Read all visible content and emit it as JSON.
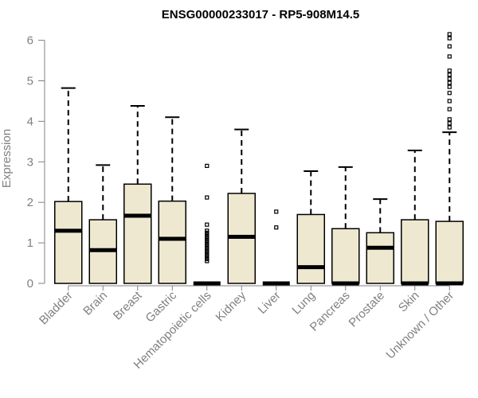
{
  "chart_data": {
    "type": "boxplot",
    "title": "ENSG00000233017 - RP5-908M14.5",
    "ylabel": "Expression",
    "xlabel": "",
    "ylim": [
      0,
      6.3
    ],
    "yticks": [
      0,
      1,
      2,
      3,
      4,
      5,
      6
    ],
    "grid": false,
    "colors": {
      "box_fill": "#EEE8D0",
      "box_stroke": "#000000",
      "axis": "#808080",
      "median": "#000000"
    },
    "categories": [
      "Bladder",
      "Brain",
      "Breast",
      "Gastric",
      "Hematopoietic cells",
      "Kidney",
      "Liver",
      "Lung",
      "Pancreas",
      "Prostate",
      "Skin",
      "Unknown / Other"
    ],
    "boxes": [
      {
        "q1": 0.0,
        "median": 1.3,
        "q3": 2.02,
        "whisker_low": 0,
        "whisker_high": 4.82,
        "outliers": []
      },
      {
        "q1": 0.0,
        "median": 0.82,
        "q3": 1.57,
        "whisker_low": 0,
        "whisker_high": 2.92,
        "outliers": []
      },
      {
        "q1": 0.0,
        "median": 1.67,
        "q3": 2.45,
        "whisker_low": 0,
        "whisker_high": 4.38,
        "outliers": []
      },
      {
        "q1": 0.0,
        "median": 1.1,
        "q3": 2.03,
        "whisker_low": 0,
        "whisker_high": 4.1,
        "outliers": []
      },
      {
        "q1": 0.0,
        "median": 0.0,
        "q3": 0.0,
        "whisker_low": 0,
        "whisker_high": 0.0,
        "outliers": [
          0.55,
          0.6,
          0.65,
          0.7,
          0.75,
          0.8,
          0.85,
          0.9,
          0.95,
          1.0,
          1.05,
          1.1,
          1.15,
          1.2,
          1.25,
          1.3,
          1.45,
          2.12,
          2.9
        ]
      },
      {
        "q1": 0.0,
        "median": 1.15,
        "q3": 2.22,
        "whisker_low": 0,
        "whisker_high": 3.8,
        "outliers": []
      },
      {
        "q1": 0.0,
        "median": 0.0,
        "q3": 0.0,
        "whisker_low": 0,
        "whisker_high": 0.0,
        "outliers": [
          1.38,
          1.77
        ]
      },
      {
        "q1": 0.0,
        "median": 0.4,
        "q3": 1.7,
        "whisker_low": 0,
        "whisker_high": 2.77,
        "outliers": []
      },
      {
        "q1": 0.0,
        "median": 0.0,
        "q3": 1.35,
        "whisker_low": 0,
        "whisker_high": 2.87,
        "outliers": []
      },
      {
        "q1": 0.0,
        "median": 0.88,
        "q3": 1.25,
        "whisker_low": 0,
        "whisker_high": 2.08,
        "outliers": []
      },
      {
        "q1": 0.0,
        "median": 0.0,
        "q3": 1.57,
        "whisker_low": 0,
        "whisker_high": 3.28,
        "outliers": []
      },
      {
        "q1": 0.0,
        "median": 0.0,
        "q3": 1.53,
        "whisker_low": 0,
        "whisker_high": 3.73,
        "outliers": [
          3.85,
          3.95,
          4.05,
          4.3,
          4.5,
          4.7,
          4.85,
          4.95,
          5.05,
          5.15,
          5.25,
          5.6,
          5.85,
          6.05,
          6.15
        ]
      }
    ]
  }
}
